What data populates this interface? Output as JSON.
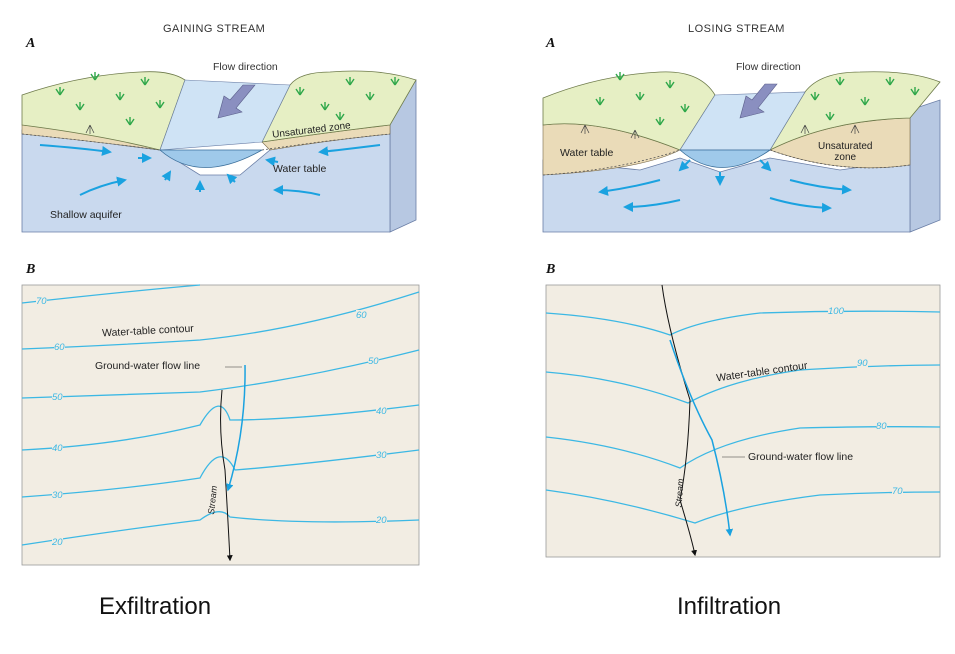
{
  "gaining": {
    "title": "GAINING STREAM",
    "block_letter": "A",
    "map_letter": "B",
    "flow_direction": "Flow direction",
    "unsaturated_zone": "Unsaturated zone",
    "water_table": "Water table",
    "shallow_aquifer": "Shallow aquifer",
    "contour_label": "Water-table contour",
    "flow_line_label": "Ground-water flow line",
    "stream_label": "Stream",
    "contour_values_left": [
      "70",
      "60",
      "50",
      "40",
      "30",
      "20"
    ],
    "contour_values_right": [
      "60",
      "50",
      "40",
      "30",
      "20"
    ],
    "caption": "Exfiltration"
  },
  "losing": {
    "title": "LOSING STREAM",
    "block_letter": "A",
    "map_letter": "B",
    "flow_direction": "Flow direction",
    "water_table": "Water table",
    "unsaturated_zone_line1": "Unsaturated",
    "unsaturated_zone_line2": "zone",
    "contour_label": "Water-table contour",
    "flow_line_label": "Ground-water flow line",
    "stream_label": "Stream",
    "contour_values": [
      "100",
      "90",
      "80",
      "70"
    ],
    "caption": "Infiltration"
  },
  "colors": {
    "grass": "#e6efc4",
    "soil": "#eadbb8",
    "aquifer": "#c9d9ee",
    "aquifer_side": "#b8c9e2",
    "stream": "#aed3ee",
    "map_bg": "#f2ede3",
    "contour": "#3cb8e4",
    "arrow": "#1aa2e0",
    "flow_arrow": "#8a8fc0"
  }
}
